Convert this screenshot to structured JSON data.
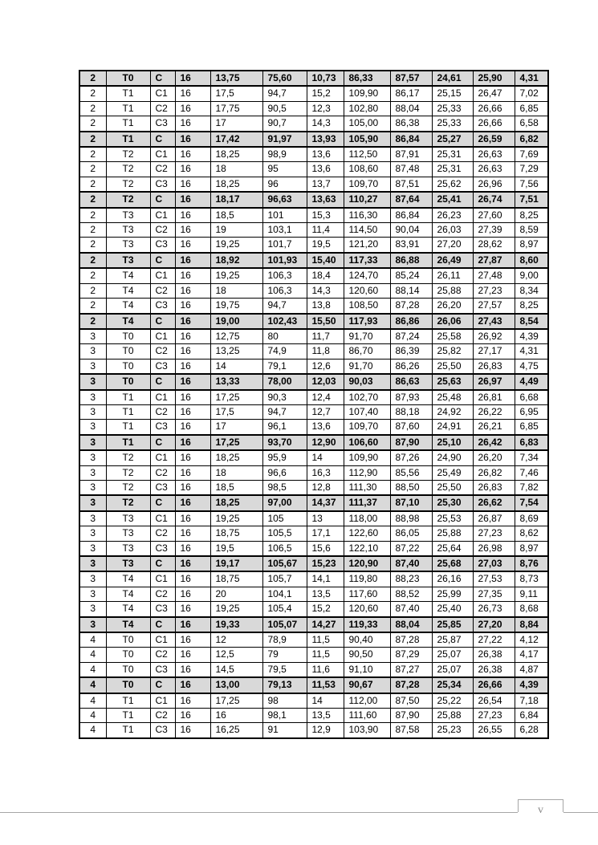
{
  "page": {
    "footer_page_number": "v"
  },
  "colors": {
    "summary_row_bg": "#d9d9d9",
    "table_border": "#000000",
    "footer_line": "#a6a6a6",
    "footer_text": "#8a8a8a"
  },
  "table": {
    "rows": [
      {
        "summary": true,
        "cells": [
          "2",
          "T0",
          "C",
          "16",
          "13,75",
          "75,60",
          "10,73",
          "86,33",
          "87,57",
          "24,61",
          "25,90",
          "4,31"
        ]
      },
      {
        "summary": false,
        "cells": [
          "2",
          "T1",
          "C1",
          "16",
          "17,5",
          "94,7",
          "15,2",
          "109,90",
          "86,17",
          "25,15",
          "26,47",
          "7,02"
        ]
      },
      {
        "summary": false,
        "cells": [
          "2",
          "T1",
          "C2",
          "16",
          "17,75",
          "90,5",
          "12,3",
          "102,80",
          "88,04",
          "25,33",
          "26,66",
          "6,85"
        ]
      },
      {
        "summary": false,
        "cells": [
          "2",
          "T1",
          "C3",
          "16",
          "17",
          "90,7",
          "14,3",
          "105,00",
          "86,38",
          "25,33",
          "26,66",
          "6,58"
        ]
      },
      {
        "summary": true,
        "cells": [
          "2",
          "T1",
          "C",
          "16",
          "17,42",
          "91,97",
          "13,93",
          "105,90",
          "86,84",
          "25,27",
          "26,59",
          "6,82"
        ]
      },
      {
        "summary": false,
        "cells": [
          "2",
          "T2",
          "C1",
          "16",
          "18,25",
          "98,9",
          "13,6",
          "112,50",
          "87,91",
          "25,31",
          "26,63",
          "7,69"
        ]
      },
      {
        "summary": false,
        "cells": [
          "2",
          "T2",
          "C2",
          "16",
          "18",
          "95",
          "13,6",
          "108,60",
          "87,48",
          "25,31",
          "26,63",
          "7,29"
        ]
      },
      {
        "summary": false,
        "cells": [
          "2",
          "T2",
          "C3",
          "16",
          "18,25",
          "96",
          "13,7",
          "109,70",
          "87,51",
          "25,62",
          "26,96",
          "7,56"
        ]
      },
      {
        "summary": true,
        "cells": [
          "2",
          "T2",
          "C",
          "16",
          "18,17",
          "96,63",
          "13,63",
          "110,27",
          "87,64",
          "25,41",
          "26,74",
          "7,51"
        ]
      },
      {
        "summary": false,
        "cells": [
          "2",
          "T3",
          "C1",
          "16",
          "18,5",
          "101",
          "15,3",
          "116,30",
          "86,84",
          "26,23",
          "27,60",
          "8,25"
        ]
      },
      {
        "summary": false,
        "cells": [
          "2",
          "T3",
          "C2",
          "16",
          "19",
          "103,1",
          "11,4",
          "114,50",
          "90,04",
          "26,03",
          "27,39",
          "8,59"
        ]
      },
      {
        "summary": false,
        "cells": [
          "2",
          "T3",
          "C3",
          "16",
          "19,25",
          "101,7",
          "19,5",
          "121,20",
          "83,91",
          "27,20",
          "28,62",
          "8,97"
        ]
      },
      {
        "summary": true,
        "cells": [
          "2",
          "T3",
          "C",
          "16",
          "18,92",
          "101,93",
          "15,40",
          "117,33",
          "86,88",
          "26,49",
          "27,87",
          "8,60"
        ]
      },
      {
        "summary": false,
        "cells": [
          "2",
          "T4",
          "C1",
          "16",
          "19,25",
          "106,3",
          "18,4",
          "124,70",
          "85,24",
          "26,11",
          "27,48",
          "9,00"
        ]
      },
      {
        "summary": false,
        "cells": [
          "2",
          "T4",
          "C2",
          "16",
          "18",
          "106,3",
          "14,3",
          "120,60",
          "88,14",
          "25,88",
          "27,23",
          "8,34"
        ]
      },
      {
        "summary": false,
        "cells": [
          "2",
          "T4",
          "C3",
          "16",
          "19,75",
          "94,7",
          "13,8",
          "108,50",
          "87,28",
          "26,20",
          "27,57",
          "8,25"
        ]
      },
      {
        "summary": true,
        "cells": [
          "2",
          "T4",
          "C",
          "16",
          "19,00",
          "102,43",
          "15,50",
          "117,93",
          "86,86",
          "26,06",
          "27,43",
          "8,54"
        ]
      },
      {
        "summary": false,
        "cells": [
          "3",
          "T0",
          "C1",
          "16",
          "12,75",
          "80",
          "11,7",
          "91,70",
          "87,24",
          "25,58",
          "26,92",
          "4,39"
        ]
      },
      {
        "summary": false,
        "cells": [
          "3",
          "T0",
          "C2",
          "16",
          "13,25",
          "74,9",
          "11,8",
          "86,70",
          "86,39",
          "25,82",
          "27,17",
          "4,31"
        ]
      },
      {
        "summary": false,
        "cells": [
          "3",
          "T0",
          "C3",
          "16",
          "14",
          "79,1",
          "12,6",
          "91,70",
          "86,26",
          "25,50",
          "26,83",
          "4,75"
        ]
      },
      {
        "summary": true,
        "cells": [
          "3",
          "T0",
          "C",
          "16",
          "13,33",
          "78,00",
          "12,03",
          "90,03",
          "86,63",
          "25,63",
          "26,97",
          "4,49"
        ]
      },
      {
        "summary": false,
        "cells": [
          "3",
          "T1",
          "C1",
          "16",
          "17,25",
          "90,3",
          "12,4",
          "102,70",
          "87,93",
          "25,48",
          "26,81",
          "6,68"
        ]
      },
      {
        "summary": false,
        "cells": [
          "3",
          "T1",
          "C2",
          "16",
          "17,5",
          "94,7",
          "12,7",
          "107,40",
          "88,18",
          "24,92",
          "26,22",
          "6,95"
        ]
      },
      {
        "summary": false,
        "cells": [
          "3",
          "T1",
          "C3",
          "16",
          "17",
          "96,1",
          "13,6",
          "109,70",
          "87,60",
          "24,91",
          "26,21",
          "6,85"
        ]
      },
      {
        "summary": true,
        "cells": [
          "3",
          "T1",
          "C",
          "16",
          "17,25",
          "93,70",
          "12,90",
          "106,60",
          "87,90",
          "25,10",
          "26,42",
          "6,83"
        ]
      },
      {
        "summary": false,
        "cells": [
          "3",
          "T2",
          "C1",
          "16",
          "18,25",
          "95,9",
          "14",
          "109,90",
          "87,26",
          "24,90",
          "26,20",
          "7,34"
        ]
      },
      {
        "summary": false,
        "cells": [
          "3",
          "T2",
          "C2",
          "16",
          "18",
          "96,6",
          "16,3",
          "112,90",
          "85,56",
          "25,49",
          "26,82",
          "7,46"
        ]
      },
      {
        "summary": false,
        "cells": [
          "3",
          "T2",
          "C3",
          "16",
          "18,5",
          "98,5",
          "12,8",
          "111,30",
          "88,50",
          "25,50",
          "26,83",
          "7,82"
        ]
      },
      {
        "summary": true,
        "cells": [
          "3",
          "T2",
          "C",
          "16",
          "18,25",
          "97,00",
          "14,37",
          "111,37",
          "87,10",
          "25,30",
          "26,62",
          "7,54"
        ]
      },
      {
        "summary": false,
        "cells": [
          "3",
          "T3",
          "C1",
          "16",
          "19,25",
          "105",
          "13",
          "118,00",
          "88,98",
          "25,53",
          "26,87",
          "8,69"
        ]
      },
      {
        "summary": false,
        "cells": [
          "3",
          "T3",
          "C2",
          "16",
          "18,75",
          "105,5",
          "17,1",
          "122,60",
          "86,05",
          "25,88",
          "27,23",
          "8,62"
        ]
      },
      {
        "summary": false,
        "cells": [
          "3",
          "T3",
          "C3",
          "16",
          "19,5",
          "106,5",
          "15,6",
          "122,10",
          "87,22",
          "25,64",
          "26,98",
          "8,97"
        ]
      },
      {
        "summary": true,
        "cells": [
          "3",
          "T3",
          "C",
          "16",
          "19,17",
          "105,67",
          "15,23",
          "120,90",
          "87,40",
          "25,68",
          "27,03",
          "8,76"
        ]
      },
      {
        "summary": false,
        "cells": [
          "3",
          "T4",
          "C1",
          "16",
          "18,75",
          "105,7",
          "14,1",
          "119,80",
          "88,23",
          "26,16",
          "27,53",
          "8,73"
        ]
      },
      {
        "summary": false,
        "cells": [
          "3",
          "T4",
          "C2",
          "16",
          "20",
          "104,1",
          "13,5",
          "117,60",
          "88,52",
          "25,99",
          "27,35",
          "9,11"
        ]
      },
      {
        "summary": false,
        "cells": [
          "3",
          "T4",
          "C3",
          "16",
          "19,25",
          "105,4",
          "15,2",
          "120,60",
          "87,40",
          "25,40",
          "26,73",
          "8,68"
        ]
      },
      {
        "summary": true,
        "cells": [
          "3",
          "T4",
          "C",
          "16",
          "19,33",
          "105,07",
          "14,27",
          "119,33",
          "88,04",
          "25,85",
          "27,20",
          "8,84"
        ]
      },
      {
        "summary": false,
        "cells": [
          "4",
          "T0",
          "C1",
          "16",
          "12",
          "78,9",
          "11,5",
          "90,40",
          "87,28",
          "25,87",
          "27,22",
          "4,12"
        ]
      },
      {
        "summary": false,
        "cells": [
          "4",
          "T0",
          "C2",
          "16",
          "12,5",
          "79",
          "11,5",
          "90,50",
          "87,29",
          "25,07",
          "26,38",
          "4,17"
        ]
      },
      {
        "summary": false,
        "cells": [
          "4",
          "T0",
          "C3",
          "16",
          "14,5",
          "79,5",
          "11,6",
          "91,10",
          "87,27",
          "25,07",
          "26,38",
          "4,87"
        ]
      },
      {
        "summary": true,
        "cells": [
          "4",
          "T0",
          "C",
          "16",
          "13,00",
          "79,13",
          "11,53",
          "90,67",
          "87,28",
          "25,34",
          "26,66",
          "4,39"
        ]
      },
      {
        "summary": false,
        "cells": [
          "4",
          "T1",
          "C1",
          "16",
          "17,25",
          "98",
          "14",
          "112,00",
          "87,50",
          "25,22",
          "26,54",
          "7,18"
        ]
      },
      {
        "summary": false,
        "cells": [
          "4",
          "T1",
          "C2",
          "16",
          "16",
          "98,1",
          "13,5",
          "111,60",
          "87,90",
          "25,88",
          "27,23",
          "6,84"
        ]
      },
      {
        "summary": false,
        "cells": [
          "4",
          "T1",
          "C3",
          "16",
          "16,25",
          "91",
          "12,9",
          "103,90",
          "87,58",
          "25,23",
          "26,55",
          "6,28"
        ]
      }
    ]
  }
}
